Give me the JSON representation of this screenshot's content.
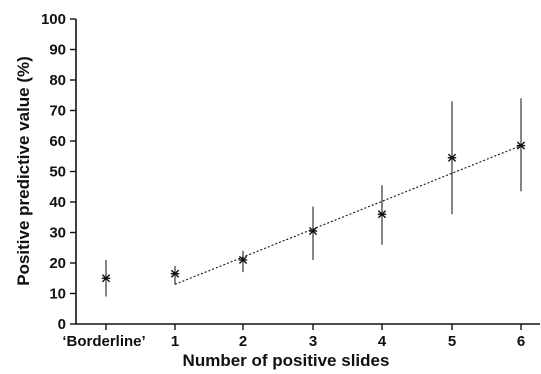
{
  "chart_data": {
    "type": "scatter",
    "title": "",
    "xlabel": "Number of positive slides",
    "ylabel": "Positive predictive value (%)",
    "x_categories": [
      "‘Borderline’",
      "1",
      "2",
      "3",
      "4",
      "5",
      "6"
    ],
    "y_ticks": [
      "0",
      "10",
      "20",
      "30",
      "40",
      "50",
      "60",
      "70",
      "80",
      "90",
      "100"
    ],
    "ylim": [
      0,
      100
    ],
    "grid": false,
    "points": [
      {
        "x": "‘Borderline’",
        "y": 15,
        "lower": 9,
        "upper": 21
      },
      {
        "x": "1",
        "y": 16.5,
        "lower": 13,
        "upper": 19
      },
      {
        "x": "2",
        "y": 21,
        "lower": 17,
        "upper": 24
      },
      {
        "x": "3",
        "y": 30.5,
        "lower": 21,
        "upper": 38.5
      },
      {
        "x": "4",
        "y": 36,
        "lower": 26,
        "upper": 45.5
      },
      {
        "x": "5",
        "y": 54.5,
        "lower": 36,
        "upper": 73
      },
      {
        "x": "6",
        "y": 58.5,
        "lower": 43.5,
        "upper": 74
      }
    ],
    "trend_line": {
      "style": "dotted",
      "from": {
        "x": "1",
        "y": 13
      },
      "to": {
        "x": "6",
        "y": 58.5
      }
    }
  }
}
